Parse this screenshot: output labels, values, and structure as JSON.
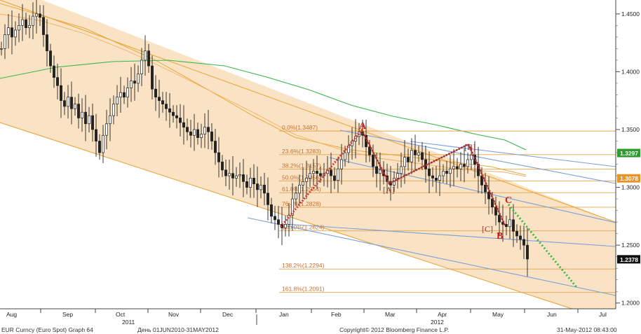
{
  "chart_data": {
    "type": "candlestick",
    "security": "EUR Curncy (Euro Spot)",
    "graph": "Graph 64",
    "period": "День 01JUN2010-31MAY2012",
    "copyright": "Copyright© 2012 Bloomberg Finance L.P.",
    "timestamp": "31-May-2012 08:43:00",
    "x_axis": {
      "months": [
        "Aug",
        "Sep",
        "Oct",
        "Nov",
        "Dec",
        "Jan",
        "Feb",
        "Mar",
        "Apr",
        "May",
        "Jun",
        "Jul"
      ],
      "years": [
        "2011",
        "2012"
      ]
    },
    "y_axis": {
      "ylim": [
        1.195,
        1.462
      ],
      "ticks": [
        "1.4500",
        "1.4000",
        "1.3500",
        "1.3000",
        "1.2500",
        "1.2000"
      ]
    },
    "price_badges": [
      {
        "label": "1.3297",
        "value": 1.3297,
        "color": "#2e9b2e"
      },
      {
        "label": "1.3078",
        "value": 1.3078,
        "color": "#e8922a"
      },
      {
        "label": "1.2378",
        "value": 1.2378,
        "color": "#111111"
      }
    ],
    "fibonacci_levels": [
      {
        "label": "0.0%(1.3487)",
        "value": 1.3487
      },
      {
        "label": "23.6%(1.3283)",
        "value": 1.3283
      },
      {
        "label": "38.2%(1.3157)",
        "value": 1.3157
      },
      {
        "label": "50.0%(1.3056)",
        "value": 1.3056
      },
      {
        "label": "61.8%(1.2954)",
        "value": 1.2954
      },
      {
        "label": "76.4%(1.2828)",
        "value": 1.2828
      },
      {
        "label": "100.0%(1.2624)",
        "value": 1.2624
      },
      {
        "label": "138.2%(1.2294)",
        "value": 1.2294
      },
      {
        "label": "161.8%(1.2091)",
        "value": 1.2091
      }
    ],
    "wave_labels": [
      {
        "label": "A",
        "color": "#cc2222"
      },
      {
        "label": "B",
        "color": "#cc2222"
      },
      {
        "label": "C",
        "color": "#cc2222"
      },
      {
        "label": "[A]",
        "color": "#993333"
      },
      {
        "label": "[B]",
        "color": "#993333"
      },
      {
        "label": "[C]",
        "color": "#993333"
      }
    ],
    "price_path": [
      [
        0,
        1.42
      ],
      [
        5,
        1.432
      ],
      [
        10,
        1.438
      ],
      [
        15,
        1.43
      ],
      [
        20,
        1.436
      ],
      [
        25,
        1.44
      ],
      [
        30,
        1.445
      ],
      [
        35,
        1.438
      ],
      [
        40,
        1.44
      ],
      [
        45,
        1.448
      ],
      [
        50,
        1.45
      ],
      [
        55,
        1.447
      ],
      [
        60,
        1.432
      ],
      [
        65,
        1.418
      ],
      [
        70,
        1.405
      ],
      [
        75,
        1.395
      ],
      [
        80,
        1.388
      ],
      [
        85,
        1.375
      ],
      [
        90,
        1.37
      ],
      [
        95,
        1.378
      ],
      [
        100,
        1.368
      ],
      [
        105,
        1.372
      ],
      [
        110,
        1.36
      ],
      [
        115,
        1.365
      ],
      [
        120,
        1.355
      ],
      [
        125,
        1.362
      ],
      [
        130,
        1.35
      ],
      [
        135,
        1.34
      ],
      [
        140,
        1.33
      ],
      [
        145,
        1.345
      ],
      [
        150,
        1.355
      ],
      [
        155,
        1.362
      ],
      [
        160,
        1.372
      ],
      [
        165,
        1.378
      ],
      [
        170,
        1.382
      ],
      [
        175,
        1.378
      ],
      [
        180,
        1.386
      ],
      [
        185,
        1.392
      ],
      [
        190,
        1.39
      ],
      [
        195,
        1.398
      ],
      [
        200,
        1.41
      ],
      [
        205,
        1.418
      ],
      [
        210,
        1.405
      ],
      [
        215,
        1.385
      ],
      [
        220,
        1.378
      ],
      [
        225,
        1.375
      ],
      [
        230,
        1.372
      ],
      [
        235,
        1.368
      ],
      [
        240,
        1.365
      ],
      [
        245,
        1.362
      ],
      [
        250,
        1.36
      ],
      [
        255,
        1.356
      ],
      [
        260,
        1.352
      ],
      [
        265,
        1.348
      ],
      [
        270,
        1.345
      ],
      [
        275,
        1.35
      ],
      [
        280,
        1.343
      ],
      [
        285,
        1.346
      ],
      [
        290,
        1.352
      ],
      [
        295,
        1.348
      ],
      [
        300,
        1.34
      ],
      [
        305,
        1.33
      ],
      [
        310,
        1.322
      ],
      [
        315,
        1.315
      ],
      [
        320,
        1.31
      ],
      [
        325,
        1.312
      ],
      [
        330,
        1.308
      ],
      [
        335,
        1.31
      ],
      [
        340,
        1.311
      ],
      [
        345,
        1.305
      ],
      [
        350,
        1.3
      ],
      [
        355,
        1.308
      ],
      [
        360,
        1.303
      ],
      [
        365,
        1.298
      ],
      [
        370,
        1.302
      ],
      [
        375,
        1.295
      ],
      [
        380,
        1.285
      ],
      [
        385,
        1.275
      ],
      [
        390,
        1.272
      ],
      [
        395,
        1.268
      ],
      [
        400,
        1.265
      ],
      [
        405,
        1.268
      ],
      [
        410,
        1.276
      ],
      [
        415,
        1.29
      ],
      [
        420,
        1.295
      ],
      [
        425,
        1.302
      ],
      [
        430,
        1.305
      ],
      [
        435,
        1.308
      ],
      [
        440,
        1.312
      ],
      [
        445,
        1.314
      ],
      [
        450,
        1.312
      ],
      [
        455,
        1.31
      ],
      [
        460,
        1.312
      ],
      [
        465,
        1.315
      ],
      [
        470,
        1.31
      ],
      [
        475,
        1.306
      ],
      [
        480,
        1.316
      ],
      [
        485,
        1.324
      ],
      [
        490,
        1.33
      ],
      [
        495,
        1.336
      ],
      [
        500,
        1.34
      ],
      [
        505,
        1.344
      ],
      [
        510,
        1.348
      ],
      [
        515,
        1.345
      ],
      [
        520,
        1.335
      ],
      [
        525,
        1.328
      ],
      [
        530,
        1.318
      ],
      [
        535,
        1.312
      ],
      [
        540,
        1.315
      ],
      [
        545,
        1.31
      ],
      [
        550,
        1.305
      ],
      [
        555,
        1.302
      ],
      [
        560,
        1.308
      ],
      [
        565,
        1.312
      ],
      [
        570,
        1.318
      ],
      [
        575,
        1.326
      ],
      [
        580,
        1.322
      ],
      [
        585,
        1.332
      ],
      [
        590,
        1.328
      ],
      [
        595,
        1.33
      ],
      [
        600,
        1.324
      ],
      [
        605,
        1.316
      ],
      [
        610,
        1.31
      ],
      [
        615,
        1.308
      ],
      [
        620,
        1.306
      ],
      [
        625,
        1.31
      ],
      [
        630,
        1.314
      ],
      [
        635,
        1.312
      ],
      [
        640,
        1.316
      ],
      [
        645,
        1.318
      ],
      [
        650,
        1.316
      ],
      [
        655,
        1.32
      ],
      [
        660,
        1.318
      ],
      [
        665,
        1.324
      ],
      [
        670,
        1.328
      ],
      [
        675,
        1.32
      ],
      [
        680,
        1.31
      ],
      [
        685,
        1.302
      ],
      [
        690,
        1.296
      ],
      [
        695,
        1.29
      ],
      [
        700,
        1.283
      ],
      [
        705,
        1.276
      ],
      [
        710,
        1.27
      ],
      [
        715,
        1.268
      ],
      [
        720,
        1.266
      ],
      [
        725,
        1.272
      ],
      [
        730,
        1.262
      ],
      [
        735,
        1.258
      ],
      [
        740,
        1.255
      ],
      [
        745,
        1.25
      ],
      [
        750,
        1.238
      ]
    ]
  }
}
